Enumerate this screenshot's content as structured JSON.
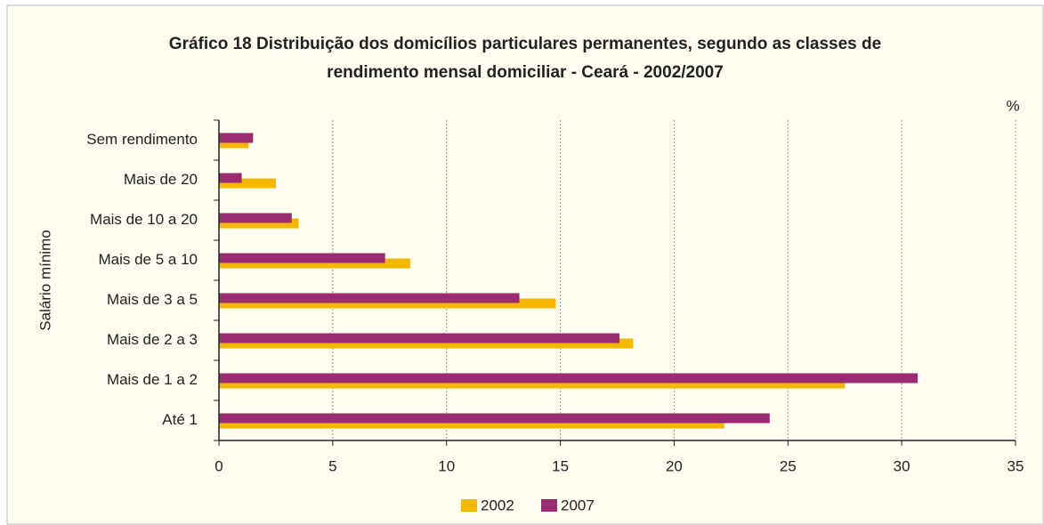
{
  "chart_data": {
    "type": "hbar",
    "title": [
      "Gráfico 18  Distribuição dos domicílios particulares permanentes,  segundo as classes de",
      "rendimento mensal domiciliar - Ceará - 2002/2007"
    ],
    "unit_label": "%",
    "y_label": "Salário mínimo",
    "categories": [
      "Sem rendimento",
      "Mais de 20",
      "Mais de 10 a 20",
      "Mais de 5 a 10",
      "Mais de 3 a 5",
      "Mais de 2 a 3",
      "Mais de 1 a 2",
      "Até 1"
    ],
    "series": [
      {
        "name": "2002",
        "color": "#f5b800",
        "values": [
          1.3,
          2.5,
          3.5,
          8.4,
          14.8,
          18.2,
          27.5,
          22.2
        ]
      },
      {
        "name": "2007",
        "color": "#9b2c73",
        "values": [
          1.5,
          1.0,
          3.2,
          7.3,
          13.2,
          17.6,
          30.7,
          24.2
        ]
      }
    ],
    "xlim": [
      0,
      35
    ],
    "xticks": [
      0,
      5,
      10,
      15,
      20,
      25,
      30,
      35
    ],
    "grid": true
  }
}
